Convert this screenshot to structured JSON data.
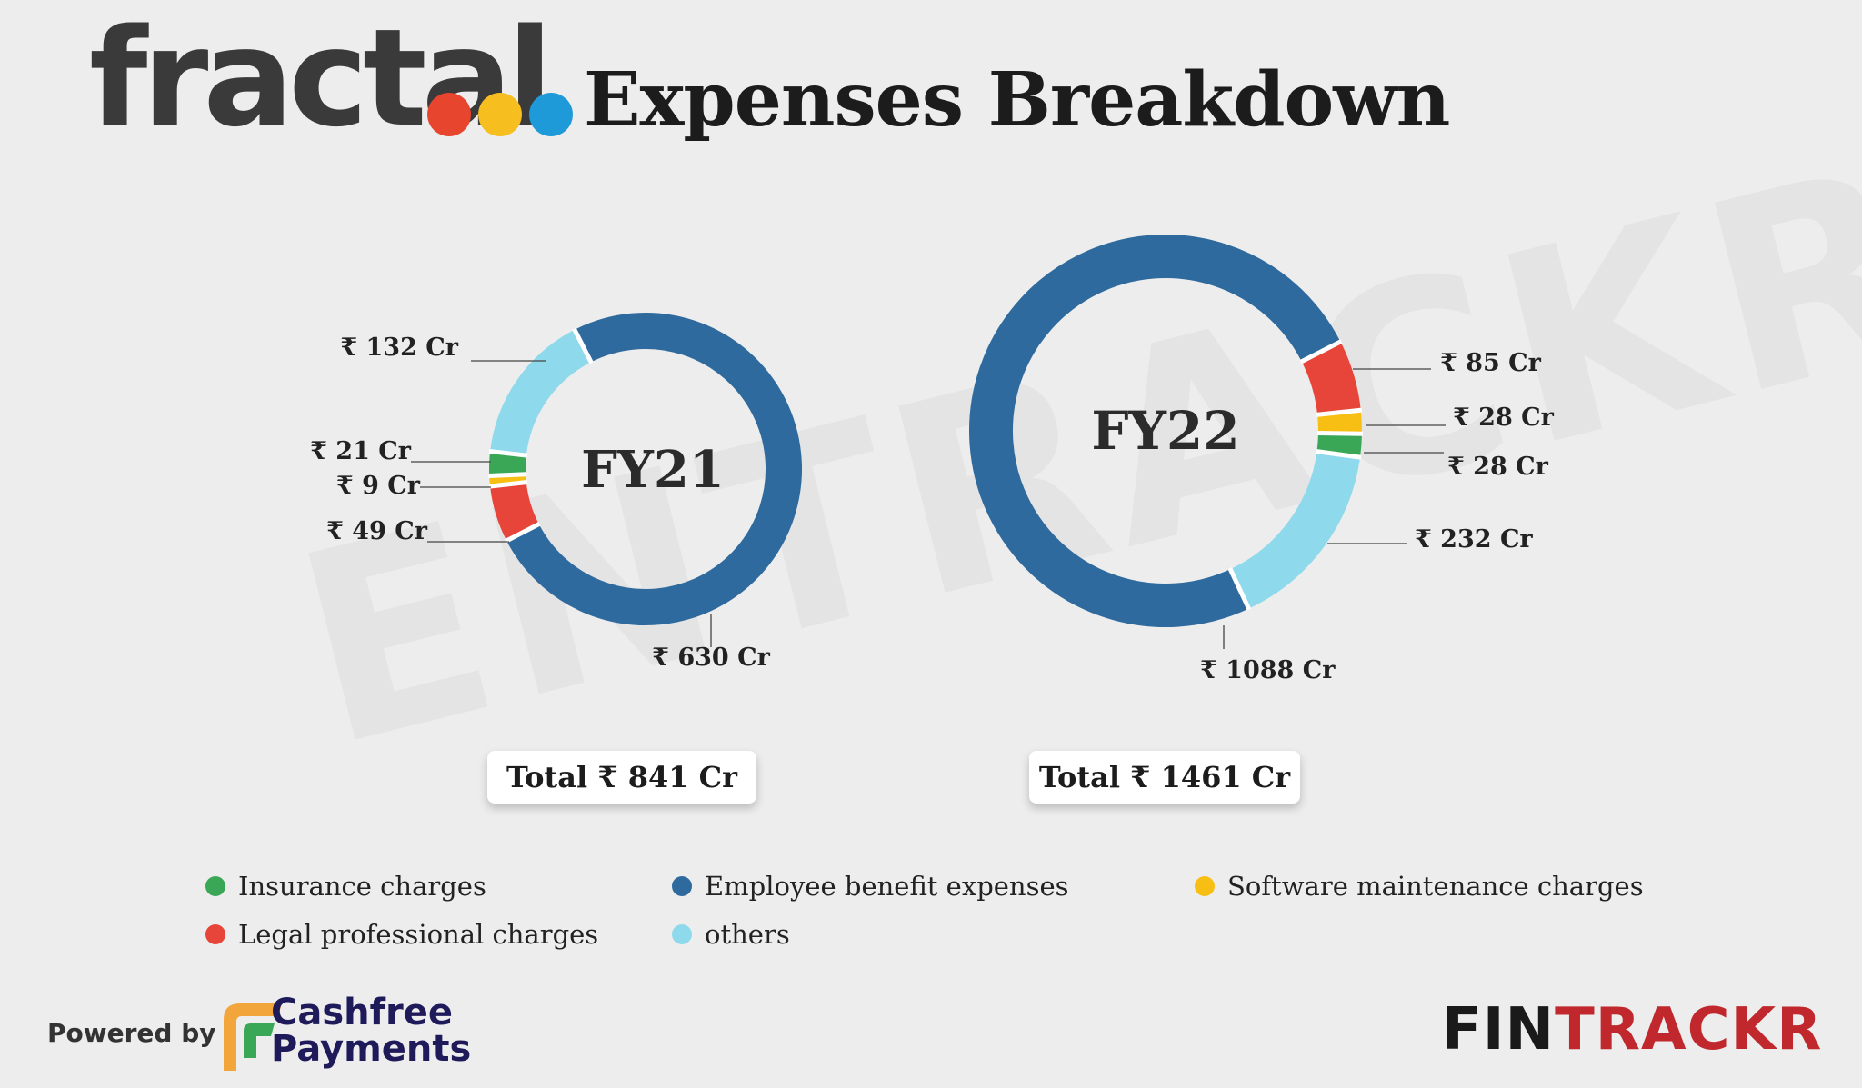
{
  "header": {
    "logo_text": "fractal",
    "logo_dot_colors": [
      "#e8452f",
      "#f6be1e",
      "#1e9ad9"
    ],
    "title": "Expenses Breakdown"
  },
  "watermark": "ENTRACKR",
  "colors": {
    "Insurance charges": "#3aa757",
    "Employee benefit expenses": "#2e6a9e",
    "Software maintenance charges": "#f7bf14",
    "Legal professional charges": "#e7453a",
    "others": "#8fd9ec"
  },
  "chart_data": [
    {
      "type": "pie",
      "subtype": "donut",
      "center_label": "FY21",
      "slices": [
        {
          "category": "Employee benefit expenses",
          "value": 630,
          "label": "₹ 630 Cr"
        },
        {
          "category": "Legal professional charges",
          "value": 49,
          "label": "₹ 49 Cr"
        },
        {
          "category": "Software maintenance charges",
          "value": 9,
          "label": "₹ 9 Cr"
        },
        {
          "category": "Insurance charges",
          "value": 21,
          "label": "₹ 21 Cr"
        },
        {
          "category": "others",
          "value": 132,
          "label": "₹ 132 Cr"
        }
      ],
      "total_label": "Total ₹  841 Cr"
    },
    {
      "type": "pie",
      "subtype": "donut",
      "center_label": "FY22",
      "slices": [
        {
          "category": "Legal professional charges",
          "value": 85,
          "label": "₹ 85 Cr"
        },
        {
          "category": "Software maintenance charges",
          "value": 28,
          "label": "₹ 28 Cr"
        },
        {
          "category": "Insurance charges",
          "value": 28,
          "label": "₹ 28 Cr"
        },
        {
          "category": "others",
          "value": 232,
          "label": "₹ 232 Cr"
        },
        {
          "category": "Employee benefit expenses",
          "value": 1088,
          "label": "₹ 1088 Cr"
        }
      ],
      "total_label": "Total ₹ 1461 Cr"
    }
  ],
  "legend": [
    {
      "label": "Insurance charges",
      "color": "#3aa757"
    },
    {
      "label": "Employee benefit expenses",
      "color": "#2e6a9e"
    },
    {
      "label": "Software maintenance charges",
      "color": "#f7bf14"
    },
    {
      "label": "Legal professional charges",
      "color": "#e7453a"
    },
    {
      "label": "others",
      "color": "#8fd9ec"
    }
  ],
  "footer": {
    "powered_by": "Powered by",
    "cashfree_line1": "Cashfree",
    "cashfree_line2": "Payments",
    "fintrackr_black": "FIN",
    "fintrackr_red": "TRACKR",
    "fintrackr_colors": [
      "#1a1a1a",
      "#c0282d"
    ]
  }
}
